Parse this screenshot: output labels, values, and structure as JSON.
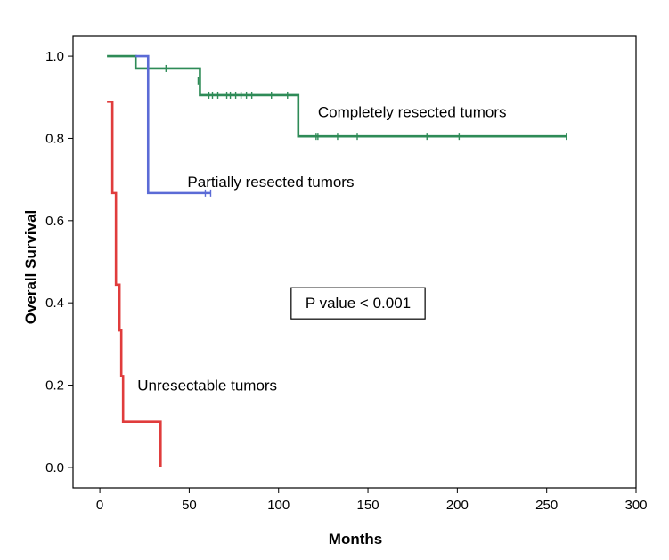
{
  "chart_data": {
    "type": "line",
    "subtype": "kaplan-meier",
    "xlabel": "Months",
    "ylabel": "Overall Survival",
    "xlim": [
      -15,
      300
    ],
    "ylim": [
      -0.05,
      1.05
    ],
    "x_ticks": [
      0,
      50,
      100,
      150,
      200,
      250,
      300
    ],
    "y_ticks": [
      0.0,
      0.2,
      0.4,
      0.6,
      0.8,
      1.0
    ],
    "x_tick_labels": [
      "0",
      "50",
      "100",
      "150",
      "200",
      "250",
      "300"
    ],
    "y_tick_labels": [
      "0.0",
      "0.2",
      "0.4",
      "0.6",
      "0.8",
      "1.0"
    ],
    "grid": false,
    "series": [
      {
        "name": "Completely resected tumors",
        "color": "#2e8b57",
        "steps": [
          [
            4,
            1.0
          ],
          [
            20,
            0.97
          ],
          [
            56,
            0.905
          ],
          [
            111,
            0.805
          ],
          [
            261,
            0.805
          ]
        ],
        "censors": [
          [
            37,
            0.97
          ],
          [
            55,
            0.94
          ],
          [
            61,
            0.905
          ],
          [
            63,
            0.905
          ],
          [
            66,
            0.905
          ],
          [
            71,
            0.905
          ],
          [
            73,
            0.905
          ],
          [
            76,
            0.905
          ],
          [
            79,
            0.905
          ],
          [
            82,
            0.905
          ],
          [
            85,
            0.905
          ],
          [
            96,
            0.905
          ],
          [
            105,
            0.905
          ],
          [
            121,
            0.805
          ],
          [
            122,
            0.805
          ],
          [
            133,
            0.805
          ],
          [
            144,
            0.805
          ],
          [
            183,
            0.805
          ],
          [
            201,
            0.805
          ],
          [
            261,
            0.805
          ]
        ]
      },
      {
        "name": "Partially resected tumors",
        "color": "#5b6bd6",
        "steps": [
          [
            20,
            1.0
          ],
          [
            27,
            0.667
          ],
          [
            62,
            0.667
          ]
        ],
        "censors": [
          [
            59,
            0.667
          ],
          [
            62,
            0.667
          ]
        ]
      },
      {
        "name": "Unresectable tumors",
        "color": "#e03c3c",
        "steps": [
          [
            4,
            0.889
          ],
          [
            7,
            0.667
          ],
          [
            9,
            0.444
          ],
          [
            11,
            0.333
          ],
          [
            12,
            0.222
          ],
          [
            13,
            0.111
          ],
          [
            34,
            0.0
          ]
        ],
        "censors": []
      }
    ],
    "annotations": [
      {
        "text": "Completely resected tumors",
        "x": 122,
        "y": 0.865
      },
      {
        "text": "Partially resected tumors",
        "x": 49,
        "y": 0.695
      },
      {
        "text": "Unresectable tumors",
        "x": 21,
        "y": 0.2
      },
      {
        "text": "P value < 0.001",
        "x": 115,
        "y": 0.4,
        "boxed": true
      }
    ]
  }
}
